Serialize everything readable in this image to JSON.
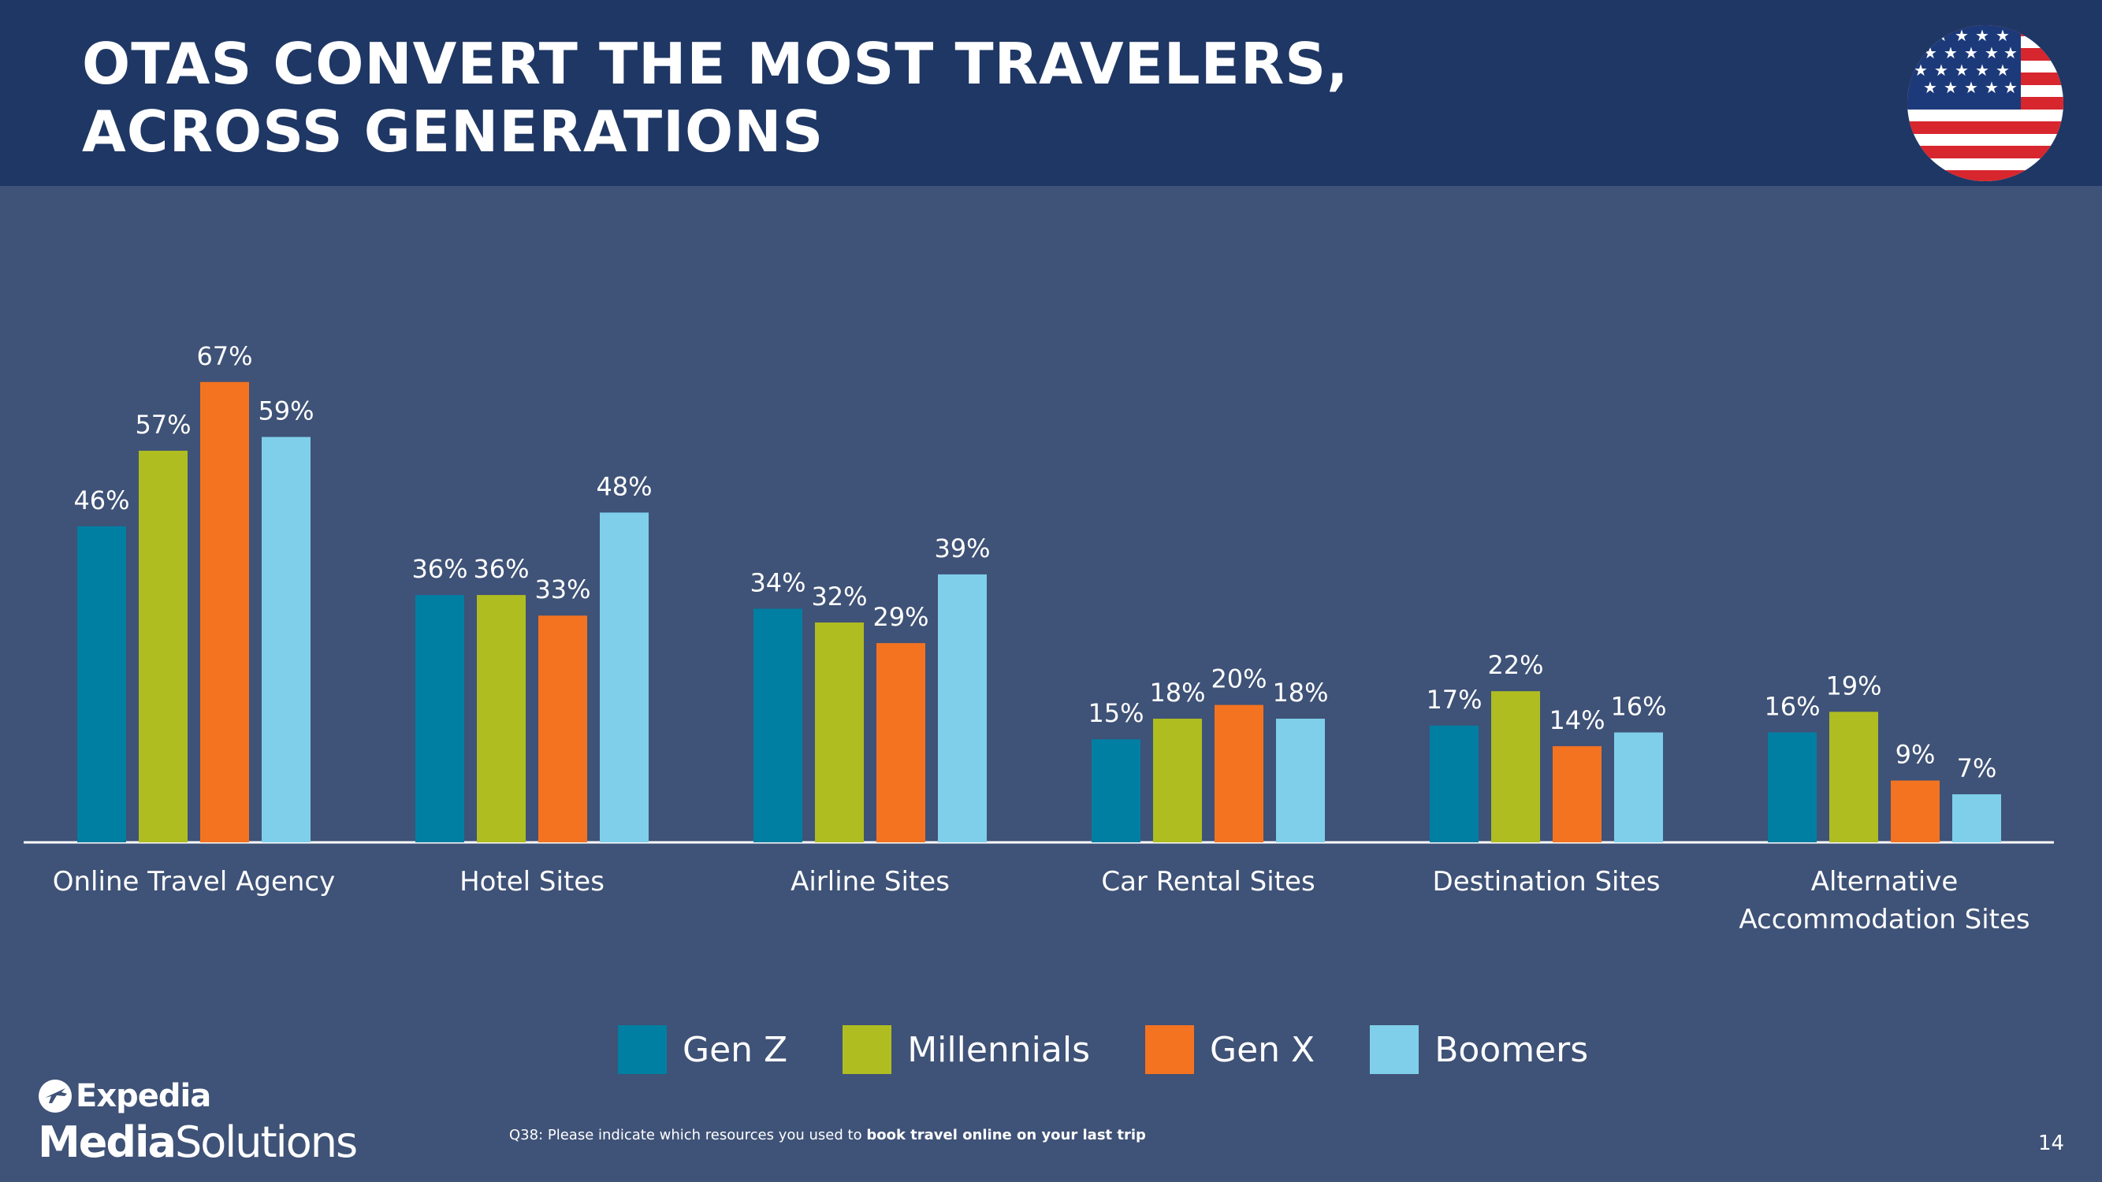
{
  "slide": {
    "title_line1": "OTAS CONVERT THE MOST TRAVELERS,",
    "title_line2": "ACROSS GENERATIONS",
    "page_number": "14",
    "footnote_prefix": "Q38: Please indicate which resources you used to ",
    "footnote_bold": "book travel online on your last trip",
    "logo_top": "Expedia",
    "logo_media": "Media",
    "logo_solutions": "Solutions"
  },
  "colors": {
    "background": "#3f5277",
    "header": "#1f3764",
    "gen_z": "#007fa3",
    "millennials": "#afbd21",
    "gen_x": "#f47321",
    "boomers": "#7fcfea"
  },
  "chart_data": {
    "type": "bar",
    "title": "OTAS CONVERT THE MOST TRAVELERS, ACROSS GENERATIONS",
    "xlabel": "",
    "ylabel": "",
    "ylim": [
      0,
      80
    ],
    "unit": "%",
    "legend_position": "bottom",
    "categories": [
      [
        "Online Travel Agency"
      ],
      [
        "Hotel Sites"
      ],
      [
        "Airline Sites"
      ],
      [
        "Car Rental Sites"
      ],
      [
        "Destination Sites"
      ],
      [
        "Alternative",
        "Accommodation Sites"
      ]
    ],
    "series": [
      {
        "name": "Gen Z",
        "color": "#007fa3",
        "values": [
          46,
          36,
          34,
          15,
          17,
          16
        ]
      },
      {
        "name": "Millennials",
        "color": "#afbd21",
        "values": [
          57,
          36,
          32,
          18,
          22,
          19
        ]
      },
      {
        "name": "Gen X",
        "color": "#f47321",
        "values": [
          67,
          33,
          29,
          20,
          14,
          9
        ]
      },
      {
        "name": "Boomers",
        "color": "#7fcfea",
        "values": [
          59,
          48,
          39,
          18,
          16,
          7
        ]
      }
    ]
  }
}
